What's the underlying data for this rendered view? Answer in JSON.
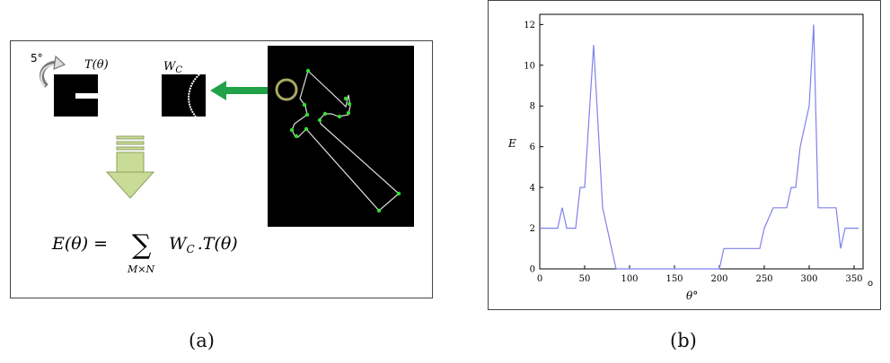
{
  "panel_a": {
    "rotation_step": "5°",
    "template_label": "T(θ)",
    "window_label": "W",
    "window_label_sub": "C",
    "equation": {
      "lhs": "E(θ) =",
      "sum_symbol": "∑",
      "sum_under": "M×N",
      "rhs_w": "W",
      "rhs_sub": "C",
      "rhs_tail": ".T(θ)"
    },
    "colors": {
      "arrow_green": "#21a248",
      "down_arrow": "#c9dc97",
      "contour_dots": "#33dd33",
      "circle": "#a8a864"
    }
  },
  "panel_b": {
    "ylabel": "E",
    "xlabel": "θ°",
    "corner_mark": "o"
  },
  "captions": {
    "a": "(a)",
    "b": "(b)"
  },
  "chart_data": {
    "type": "line",
    "x": [
      0,
      20,
      25,
      30,
      40,
      45,
      50,
      60,
      70,
      85,
      95,
      200,
      205,
      245,
      250,
      260,
      275,
      280,
      285,
      290,
      300,
      305,
      310,
      320,
      330,
      335,
      340,
      355
    ],
    "series": [
      {
        "values": [
          2,
          2,
          3,
          2,
          2,
          4,
          4,
          11,
          3,
          0,
          0,
          0,
          1,
          1,
          2,
          3,
          3,
          4,
          4,
          6,
          8,
          12,
          3,
          3,
          3,
          1,
          2,
          2
        ]
      }
    ],
    "xticks": [
      0,
      50,
      100,
      150,
      200,
      250,
      300,
      350
    ],
    "yticks": [
      0,
      2,
      4,
      6,
      8,
      10,
      12
    ],
    "xlim": [
      0,
      360
    ],
    "ylim": [
      0,
      12.5
    ],
    "line_color": "#8080ee",
    "grid": false
  }
}
